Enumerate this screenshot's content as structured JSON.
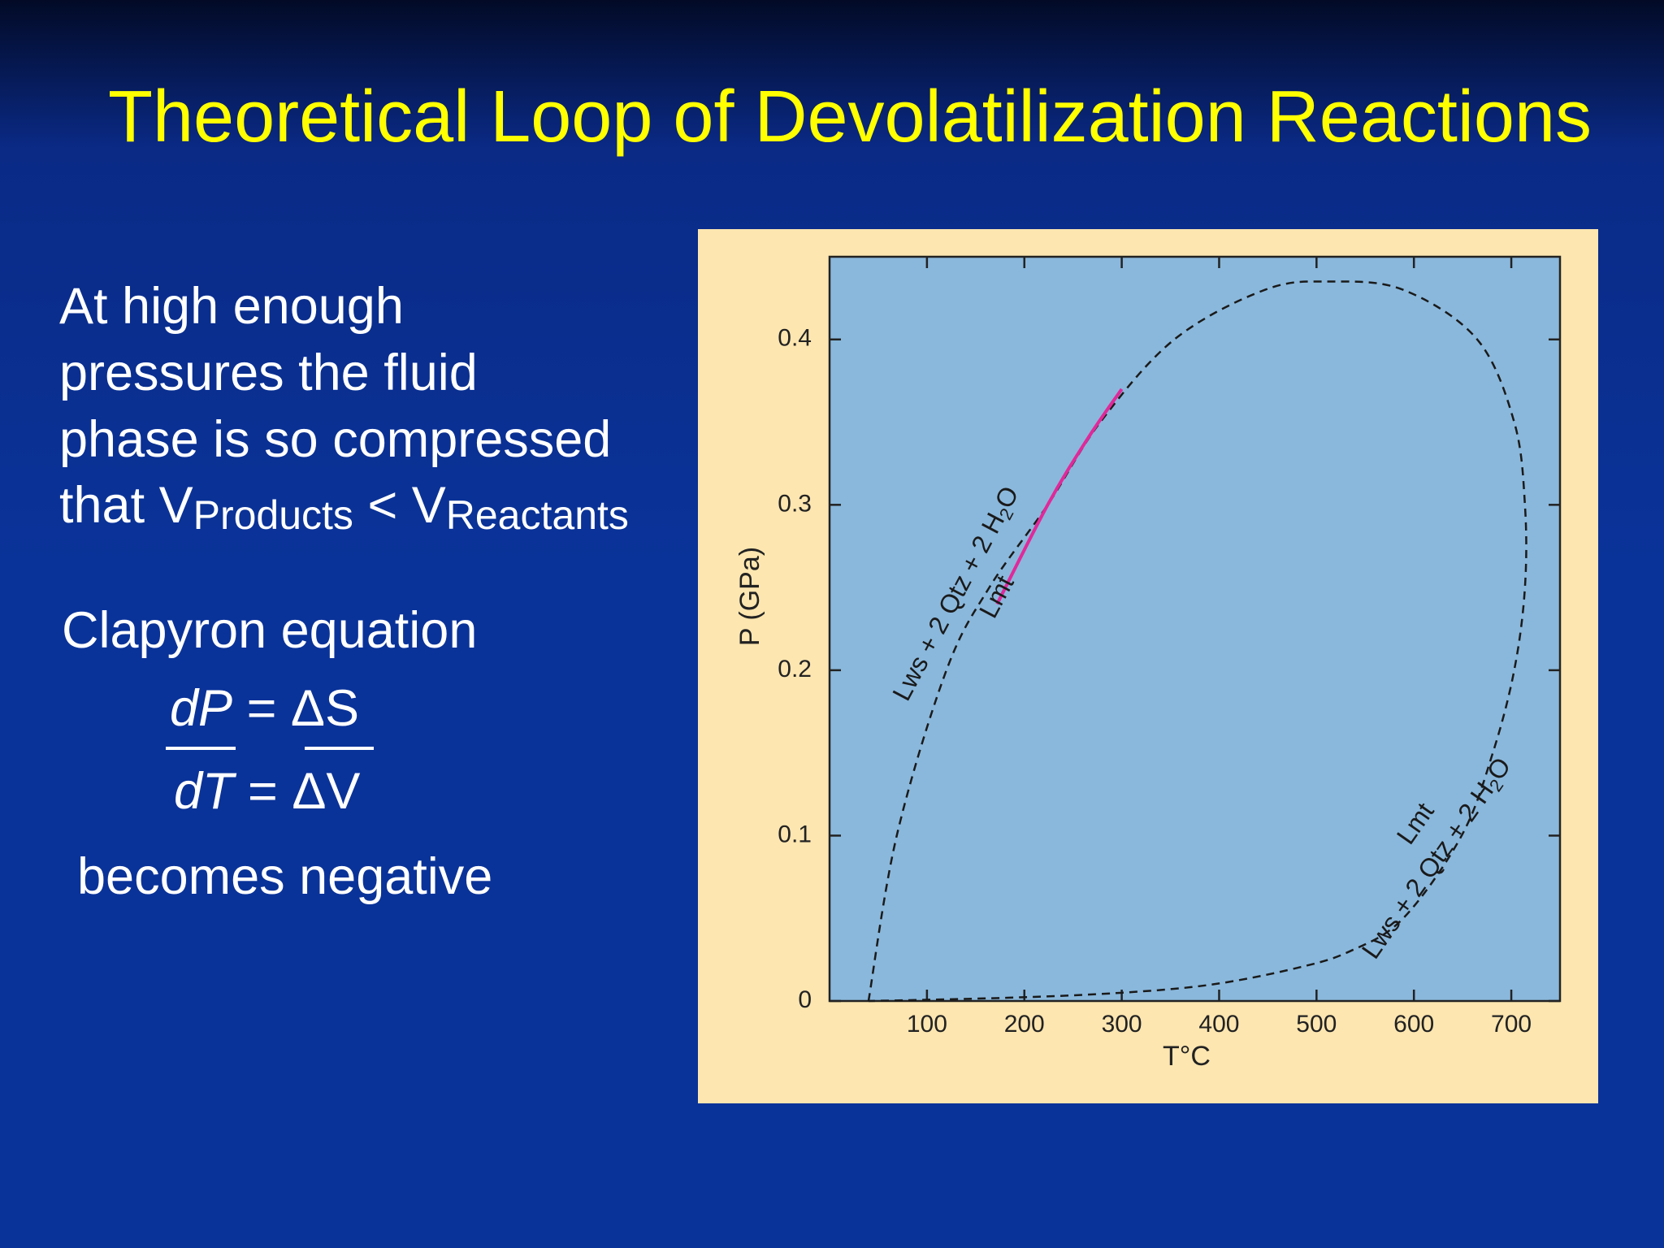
{
  "slide": {
    "title": "Theoretical Loop of Devolatilization Reactions",
    "paragraph": [
      "At high enough",
      "pressures the fluid",
      "phase is so compressed"
    ],
    "last_line": {
      "start": "that V",
      "sub1": "Products",
      "middle": " < V",
      "sub2": "Reactants"
    },
    "equation": {
      "heading": "Clapyron equation",
      "dP": "dP",
      "eq1": " = ",
      "dS": "ΔS",
      "dT": "dT",
      "eq2": " = ",
      "dV": "ΔV",
      "footer": "becomes negative"
    }
  },
  "chart_data": {
    "type": "line",
    "xlabel": "T°C",
    "ylabel": "P (GPa)",
    "xlim": [
      0,
      750
    ],
    "xticks": [
      100,
      200,
      300,
      400,
      500,
      600,
      700
    ],
    "ylim": [
      0,
      0.45
    ],
    "yticks": [
      0,
      0.1,
      0.2,
      0.3,
      0.4
    ],
    "series": [
      {
        "color": "#1a1a1a",
        "dashed": true,
        "x": [
          40,
          69,
          120,
          164,
          224,
          278,
          354,
          447,
          513,
          589,
          665,
          703,
          714,
          714,
          703,
          681,
          649,
          589,
          534,
          480,
          393,
          300,
          185,
          40
        ],
        "values": [
          0,
          0.1,
          0.2,
          0.25,
          0.3,
          0.35,
          0.4,
          0.43,
          0.435,
          0.43,
          0.4,
          0.35,
          0.3,
          0.25,
          0.2,
          0.15,
          0.1,
          0.05,
          0.03,
          0.02,
          0.01,
          0.005,
          0.002,
          0
        ]
      },
      {
        "color": "#e0299a",
        "dashed": false,
        "x": [
          172,
          224,
          265,
          300
        ],
        "values": [
          0.24,
          0.3,
          0.34,
          0.37
        ]
      }
    ],
    "annotations": [
      {
        "reactants": "Lws + 2 Qtz + 2 H",
        "sub": "2",
        "tail": "O",
        "product": "Lmt"
      },
      {
        "reactants": "Lws + 2 Qtz + 2 H",
        "sub": "2",
        "tail": "O",
        "product": "Lmt"
      }
    ]
  }
}
